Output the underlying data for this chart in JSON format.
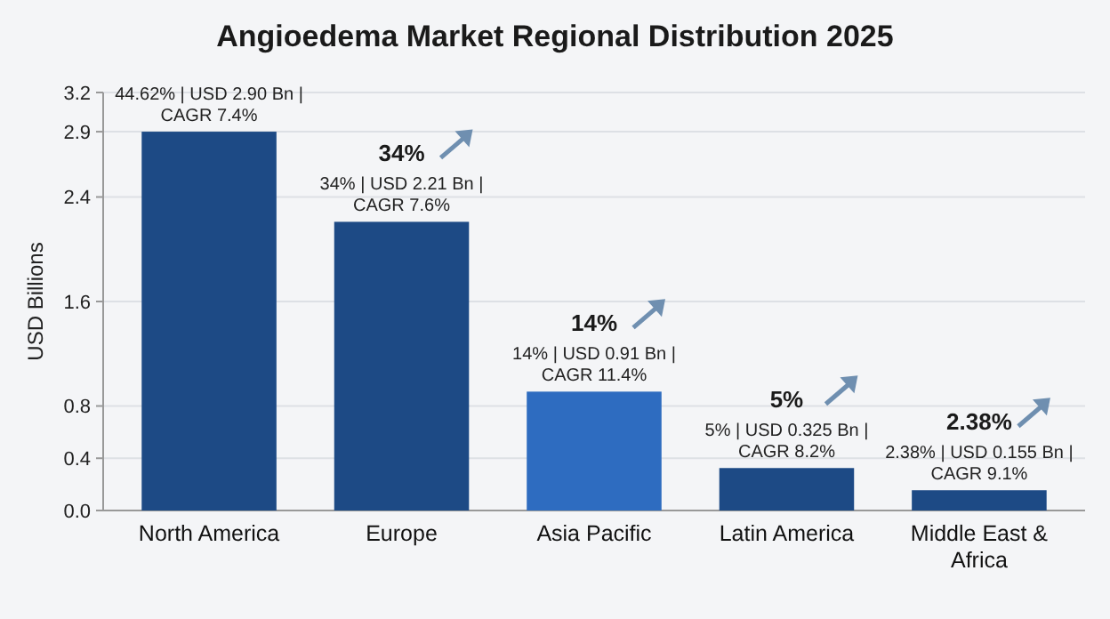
{
  "chart_data": {
    "type": "bar",
    "title": "Angioedema Market Regional Distribution 2025",
    "ylabel": "USD Billions",
    "categories": [
      "North America",
      "Europe",
      "Asia Pacific",
      "Latin America",
      "Middle East & Africa"
    ],
    "values": [
      2.9,
      2.21,
      0.91,
      0.325,
      0.155
    ],
    "colors": [
      "#1d4a85",
      "#1d4a85",
      "#2e6cc0",
      "#1d4a85",
      "#1d4a85"
    ],
    "value_labels": [
      "44.62% | USD 2.90 Bn | CAGR 7.4%",
      "34% | USD 2.21 Bn | CAGR 7.6%",
      "14% | USD 0.91 Bn | CAGR 11.4%",
      "5% | USD 0.325 Bn | CAGR 8.2%",
      "2.38% | USD 0.155 Bn | CAGR 9.1%"
    ],
    "annotations": [
      {
        "text": "34%",
        "x": "Europe",
        "y": 2.21
      },
      {
        "text": "14%",
        "x": "Asia Pacific",
        "y": 0.91
      },
      {
        "text": "5%",
        "x": "Latin America",
        "y": 0.325
      },
      {
        "text": "2.38%",
        "x": "Middle East & Africa",
        "y": 0.155
      }
    ],
    "ylim": [
      0,
      3.2
    ],
    "yticks": [
      {
        "value": 0,
        "label": "0.0"
      },
      0.4,
      0.8,
      1.6,
      2.4,
      2.9,
      3.2
    ],
    "grid": "y"
  }
}
